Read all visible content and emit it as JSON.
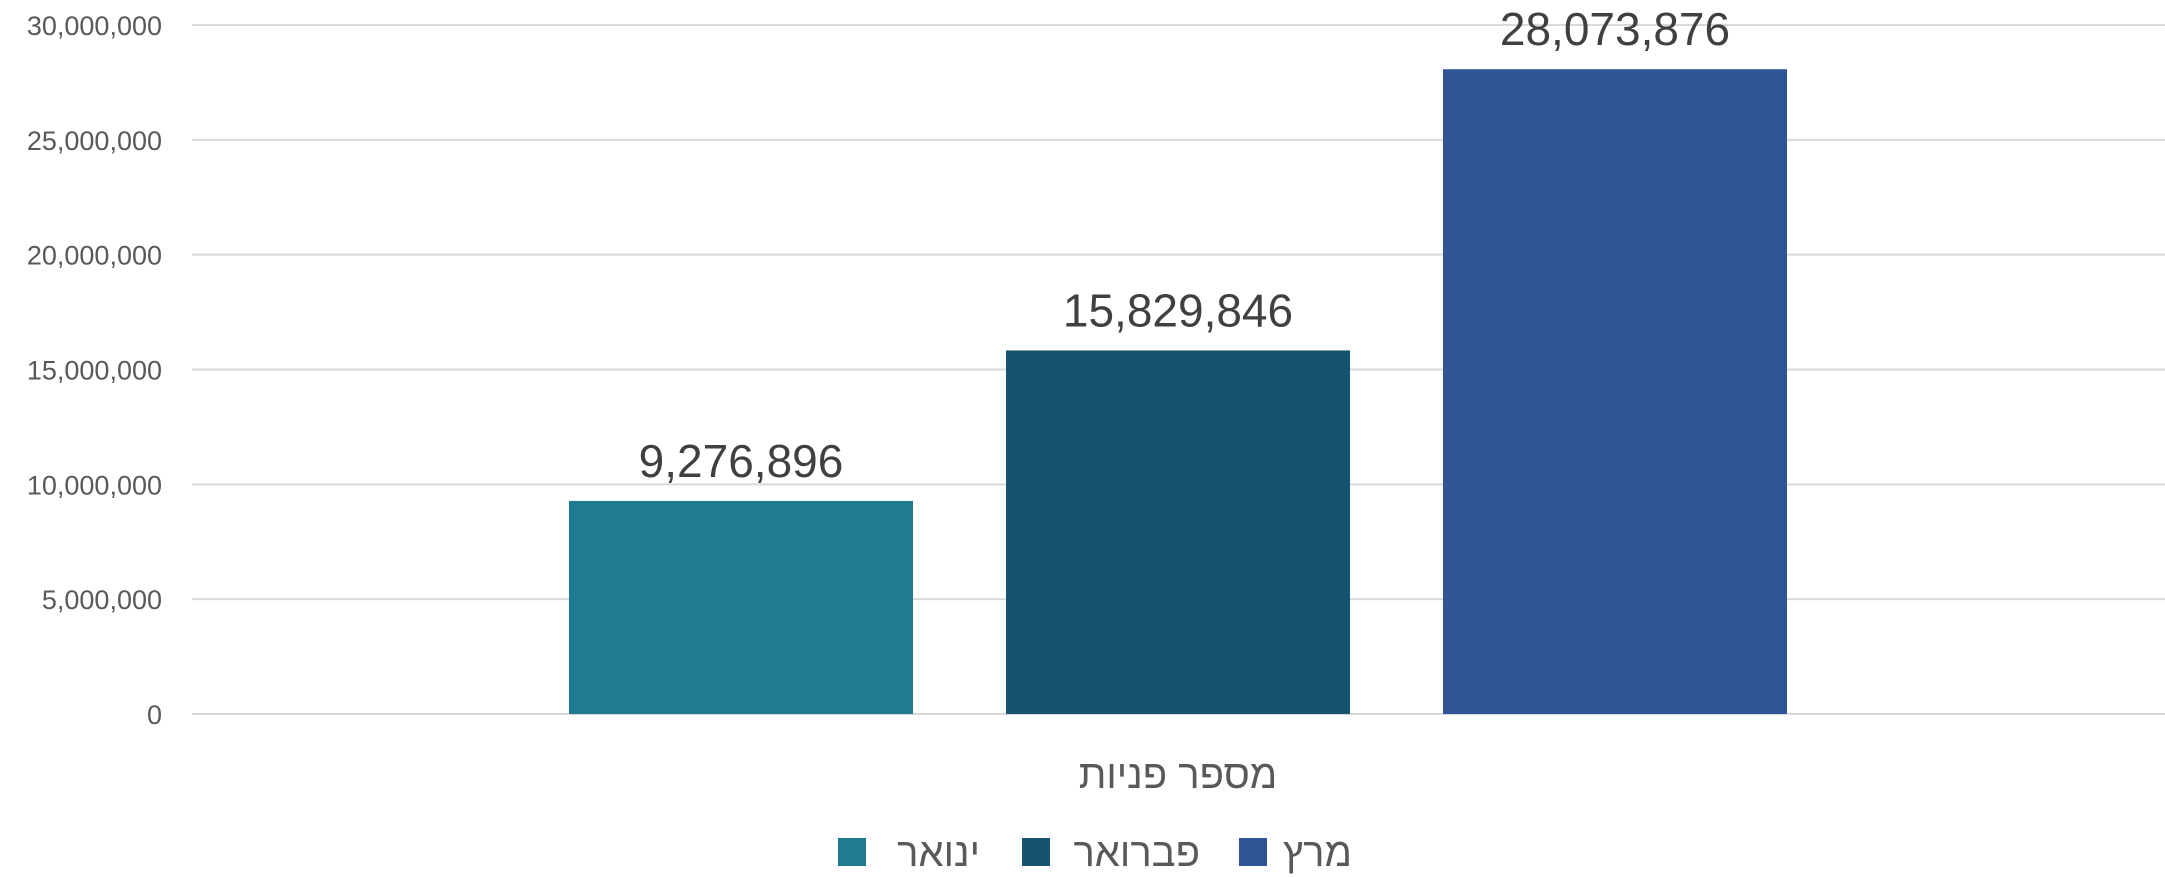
{
  "chart_data": {
    "type": "bar",
    "categories": [
      "מספר פניות"
    ],
    "series": [
      {
        "name": "ינואר",
        "values": [
          9276896
        ],
        "color": "#1f7b8f",
        "label": "9,276,896"
      },
      {
        "name": "פברואר",
        "values": [
          15829846
        ],
        "color": "#14546e",
        "label": "15,829,846"
      },
      {
        "name": "מרץ",
        "values": [
          28073876
        ],
        "color": "#2f5597",
        "label": "28,073,876"
      }
    ],
    "ylim": [
      0,
      30000000
    ],
    "yticks": [
      0,
      5000000,
      10000000,
      15000000,
      20000000,
      25000000,
      30000000
    ],
    "ytick_labels": [
      "0",
      "5,000,000",
      "10,000,000",
      "15,000,000",
      "20,000,000",
      "25,000,000",
      "30,000,000"
    ],
    "grid": true,
    "legend": "bottom",
    "title": "",
    "xlabel": "",
    "ylabel": ""
  }
}
